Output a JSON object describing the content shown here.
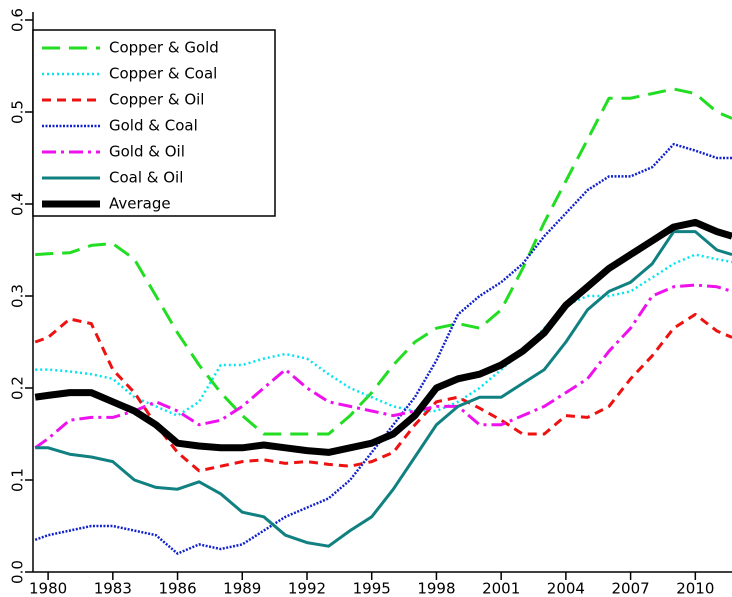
{
  "chart_data": {
    "type": "line",
    "x": [
      1979.4,
      1980,
      1981,
      1982,
      1983,
      1984,
      1985,
      1986,
      1987,
      1988,
      1989,
      1990,
      1991,
      1992,
      1993,
      1994,
      1995,
      1996,
      1997,
      1998,
      1999,
      2000,
      2001,
      2002,
      2003,
      2004,
      2005,
      2006,
      2007,
      2008,
      2009,
      2010,
      2011,
      2011.7
    ],
    "xlim": [
      1979.3,
      2011.7
    ],
    "xticks": [
      1980,
      1983,
      1986,
      1989,
      1992,
      1995,
      1998,
      2001,
      2004,
      2007,
      2010
    ],
    "ylim": [
      0,
      0.6
    ],
    "yticks": [
      {
        "value": 0,
        "label": "0.0"
      },
      0.1,
      0.2,
      0.3,
      0.4,
      0.5,
      0.6
    ],
    "legend": "top-left",
    "series": [
      {
        "name": "Copper & Gold",
        "color": "#22dd22",
        "dash": "18 9",
        "width": 3,
        "values": [
          0.345,
          0.346,
          0.347,
          0.355,
          0.357,
          0.34,
          0.3,
          0.26,
          0.225,
          0.195,
          0.17,
          0.15,
          0.15,
          0.15,
          0.15,
          0.17,
          0.195,
          0.225,
          0.25,
          0.265,
          0.27,
          0.265,
          0.285,
          0.33,
          0.38,
          0.425,
          0.47,
          0.515,
          0.515,
          0.52,
          0.525,
          0.52,
          0.5,
          0.493
        ]
      },
      {
        "name": "Copper & Coal",
        "color": "#00e5ee",
        "dash": "2 3",
        "width": 2.5,
        "values": [
          0.22,
          0.22,
          0.218,
          0.215,
          0.21,
          0.19,
          0.18,
          0.17,
          0.185,
          0.225,
          0.225,
          0.232,
          0.237,
          0.232,
          0.215,
          0.2,
          0.19,
          0.18,
          0.175,
          0.175,
          0.185,
          0.2,
          0.22,
          0.24,
          0.265,
          0.29,
          0.3,
          0.3,
          0.305,
          0.32,
          0.335,
          0.345,
          0.34,
          0.337
        ]
      },
      {
        "name": "Copper & Oil",
        "color": "#ee1111",
        "dash": "9 6",
        "width": 3,
        "values": [
          0.25,
          0.255,
          0.275,
          0.27,
          0.22,
          0.195,
          0.16,
          0.13,
          0.11,
          0.115,
          0.12,
          0.122,
          0.118,
          0.12,
          0.117,
          0.115,
          0.12,
          0.13,
          0.16,
          0.185,
          0.19,
          0.178,
          0.165,
          0.15,
          0.15,
          0.17,
          0.168,
          0.18,
          0.21,
          0.235,
          0.265,
          0.28,
          0.262,
          0.255
        ]
      },
      {
        "name": "Gold & Coal",
        "color": "#1122cc",
        "dash": "2 1.5",
        "width": 2.5,
        "values": [
          0.035,
          0.04,
          0.045,
          0.05,
          0.05,
          0.045,
          0.04,
          0.02,
          0.03,
          0.025,
          0.03,
          0.045,
          0.06,
          0.07,
          0.08,
          0.1,
          0.13,
          0.16,
          0.19,
          0.23,
          0.28,
          0.3,
          0.315,
          0.335,
          0.365,
          0.39,
          0.415,
          0.43,
          0.43,
          0.44,
          0.465,
          0.458,
          0.45,
          0.45
        ]
      },
      {
        "name": "Gold & Oil",
        "color": "#ee11ee",
        "dash": "14 5 3 5",
        "width": 3,
        "values": [
          0.135,
          0.145,
          0.165,
          0.168,
          0.168,
          0.175,
          0.185,
          0.175,
          0.16,
          0.165,
          0.18,
          0.2,
          0.22,
          0.2,
          0.185,
          0.18,
          0.175,
          0.17,
          0.175,
          0.18,
          0.18,
          0.16,
          0.16,
          0.17,
          0.18,
          0.195,
          0.21,
          0.24,
          0.265,
          0.3,
          0.31,
          0.312,
          0.31,
          0.305
        ]
      },
      {
        "name": "Coal & Oil",
        "color": "#118080",
        "dash": "none",
        "width": 3,
        "values": [
          0.135,
          0.135,
          0.128,
          0.125,
          0.12,
          0.1,
          0.092,
          0.09,
          0.098,
          0.085,
          0.065,
          0.06,
          0.04,
          0.032,
          0.028,
          0.045,
          0.06,
          0.09,
          0.125,
          0.16,
          0.18,
          0.19,
          0.19,
          0.205,
          0.22,
          0.25,
          0.285,
          0.305,
          0.315,
          0.335,
          0.37,
          0.37,
          0.35,
          0.345
        ]
      },
      {
        "name": "Average",
        "color": "#000000",
        "dash": "none",
        "width": 7,
        "values": [
          0.19,
          0.192,
          0.195,
          0.195,
          0.185,
          0.175,
          0.16,
          0.14,
          0.137,
          0.135,
          0.135,
          0.138,
          0.135,
          0.132,
          0.13,
          0.135,
          0.14,
          0.15,
          0.17,
          0.2,
          0.21,
          0.215,
          0.225,
          0.24,
          0.26,
          0.29,
          0.31,
          0.33,
          0.345,
          0.36,
          0.375,
          0.38,
          0.37,
          0.365
        ]
      }
    ]
  }
}
